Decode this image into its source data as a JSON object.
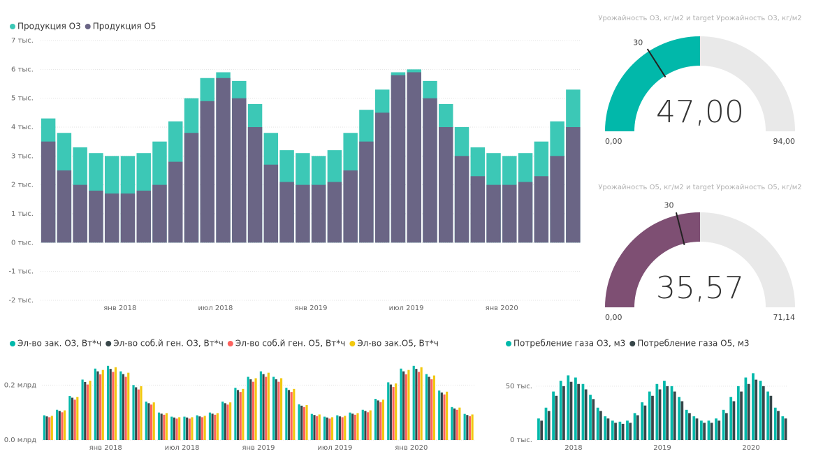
{
  "chart_data": [
    {
      "type": "bar",
      "barmode": "overlay",
      "categories": [
        null,
        null,
        null,
        null,
        null,
        "янв 2018",
        null,
        null,
        null,
        null,
        null,
        "июл 2018",
        null,
        null,
        null,
        null,
        null,
        "янв 2019",
        null,
        null,
        null,
        null,
        null,
        "июл 2019",
        null,
        null,
        null,
        null,
        null,
        "янв 2020",
        null,
        null,
        null,
        null
      ],
      "series": [
        {
          "name": "Продукция О3",
          "color": "#3cc8b6",
          "values": [
            4300,
            3800,
            3300,
            3100,
            3000,
            3000,
            3100,
            3500,
            4200,
            5000,
            5700,
            5900,
            5600,
            4800,
            3800,
            3200,
            3100,
            3000,
            3200,
            3800,
            4600,
            5300,
            5900,
            6000,
            5600,
            4800,
            4000,
            3300,
            3100,
            3000,
            3100,
            3500,
            4200,
            5300
          ]
        },
        {
          "name": "Продукция О5",
          "color": "#6a6585",
          "values": [
            3500,
            2500,
            2000,
            1800,
            1700,
            1700,
            1800,
            2000,
            2800,
            3800,
            4900,
            5700,
            5000,
            4000,
            2700,
            2100,
            2000,
            2000,
            2100,
            2500,
            3500,
            4500,
            5800,
            5900,
            5000,
            4000,
            3000,
            2300,
            2000,
            2000,
            2100,
            2300,
            3000,
            4000
          ]
        }
      ],
      "ylim": [
        -2000,
        7000
      ],
      "yticks": [
        {
          "value": -2000,
          "label": "-2 тыс."
        },
        {
          "value": -1000,
          "label": "-1 тыс."
        },
        {
          "value": 0,
          "label": "0 тыс."
        },
        {
          "value": 1000,
          "label": "1 тыс."
        },
        {
          "value": 2000,
          "label": "2 тыс."
        },
        {
          "value": 3000,
          "label": "3 тыс."
        },
        {
          "value": 4000,
          "label": "4 тыс."
        },
        {
          "value": 5000,
          "label": "5 тыс."
        },
        {
          "value": 6000,
          "label": "6 тыс."
        },
        {
          "value": 7000,
          "label": "7 тыс."
        }
      ],
      "grid": true
    },
    {
      "type": "gauge",
      "title": "Урожайность О3, кг/м2 и target Урожайность О3, кг/м2",
      "value": 47,
      "value_label": "47,00",
      "min": 0,
      "min_label": "0,00",
      "max": 94,
      "max_label": "94,00",
      "target": 30,
      "color": "#01b8aa"
    },
    {
      "type": "gauge",
      "title": "Урожайность О5, кг/м2 и target Урожайность О5, кг/м2",
      "value": 35.57,
      "value_label": "35,57",
      "min": 0,
      "min_label": "0,00",
      "max": 71.14,
      "max_label": "71,14",
      "target": 30,
      "color": "#7e4f73"
    },
    {
      "type": "bar",
      "barmode": "group",
      "categories": [
        null,
        null,
        null,
        null,
        null,
        "янв 2018",
        null,
        null,
        null,
        null,
        null,
        "июл 2018",
        null,
        null,
        null,
        null,
        null,
        "янв 2019",
        null,
        null,
        null,
        null,
        null,
        "июл 2019",
        null,
        null,
        null,
        null,
        null,
        "янв 2020",
        null,
        null,
        null,
        null
      ],
      "series": [
        {
          "name": "Эл-во зак. О3, Вт*ч",
          "color": "#01b8aa",
          "values": [
            90000000,
            110000000,
            160000000,
            220000000,
            260000000,
            270000000,
            250000000,
            200000000,
            140000000,
            100000000,
            85000000,
            85000000,
            90000000,
            100000000,
            140000000,
            190000000,
            230000000,
            250000000,
            230000000,
            190000000,
            130000000,
            95000000,
            85000000,
            90000000,
            100000000,
            110000000,
            150000000,
            210000000,
            260000000,
            270000000,
            240000000,
            180000000,
            120000000,
            95000000
          ]
        },
        {
          "name": "Эл-во соб.й ген. О3, Вт*ч",
          "color": "#374649",
          "values": [
            86000000,
            106000000,
            154000000,
            211000000,
            250000000,
            259000000,
            240000000,
            192000000,
            134000000,
            96000000,
            82000000,
            82000000,
            86000000,
            96000000,
            134000000,
            182000000,
            221000000,
            240000000,
            221000000,
            182000000,
            125000000,
            91000000,
            82000000,
            86000000,
            96000000,
            106000000,
            144000000,
            202000000,
            250000000,
            259000000,
            230000000,
            173000000,
            115000000,
            91000000
          ]
        },
        {
          "name": "Эл-во соб.й ген. О5, Вт*ч",
          "color": "#fd625e",
          "values": [
            83000000,
            101000000,
            147000000,
            202000000,
            239000000,
            248000000,
            230000000,
            184000000,
            129000000,
            92000000,
            78000000,
            78000000,
            83000000,
            92000000,
            129000000,
            175000000,
            212000000,
            230000000,
            212000000,
            175000000,
            120000000,
            87000000,
            78000000,
            83000000,
            92000000,
            101000000,
            138000000,
            193000000,
            239000000,
            248000000,
            221000000,
            166000000,
            110000000,
            87000000
          ]
        },
        {
          "name": "Эл-во зак.О5, Вт*ч",
          "color": "#f2c80f",
          "values": [
            88000000,
            108000000,
            157000000,
            216000000,
            255000000,
            265000000,
            245000000,
            196000000,
            137000000,
            98000000,
            83000000,
            83000000,
            88000000,
            98000000,
            137000000,
            186000000,
            225000000,
            245000000,
            225000000,
            186000000,
            127000000,
            93000000,
            83000000,
            88000000,
            98000000,
            108000000,
            147000000,
            206000000,
            255000000,
            265000000,
            235000000,
            176000000,
            118000000,
            93000000
          ]
        }
      ],
      "ylim": [
        0,
        300000000
      ],
      "yticks": [
        {
          "value": 0,
          "label": "0.0 млрд"
        },
        {
          "value": 200000000,
          "label": "0.2 млрд"
        }
      ],
      "grid": true
    },
    {
      "type": "bar",
      "barmode": "group",
      "categories": [
        null,
        null,
        null,
        null,
        null,
        "2018",
        null,
        null,
        null,
        null,
        null,
        null,
        null,
        null,
        null,
        null,
        null,
        "2019",
        null,
        null,
        null,
        null,
        null,
        null,
        null,
        null,
        null,
        null,
        null,
        "2020",
        null,
        null,
        null,
        null
      ],
      "series": [
        {
          "name": "Потребление газа О3, м3",
          "color": "#01b8aa",
          "values": [
            20000,
            30000,
            45000,
            55000,
            60000,
            58000,
            52000,
            42000,
            30000,
            22000,
            18000,
            17000,
            18000,
            25000,
            35000,
            45000,
            52000,
            55000,
            50000,
            40000,
            28000,
            22000,
            18000,
            18000,
            20000,
            28000,
            40000,
            50000,
            58000,
            62000,
            55000,
            45000,
            30000,
            22000
          ]
        },
        {
          "name": "Потребление газа О5, м3",
          "color": "#374649",
          "values": [
            18000,
            27000,
            41000,
            50000,
            54000,
            52000,
            47000,
            38000,
            27000,
            20000,
            16000,
            15000,
            16000,
            23000,
            32000,
            41000,
            47000,
            50000,
            45000,
            36000,
            25000,
            20000,
            16000,
            16000,
            18000,
            25000,
            36000,
            45000,
            52000,
            56000,
            50000,
            41000,
            27000,
            20000
          ]
        }
      ],
      "ylim": [
        0,
        70000
      ],
      "yticks": [
        {
          "value": 0,
          "label": "0 тыс."
        },
        {
          "value": 50000,
          "label": "50 тыс."
        }
      ],
      "grid": true
    }
  ]
}
